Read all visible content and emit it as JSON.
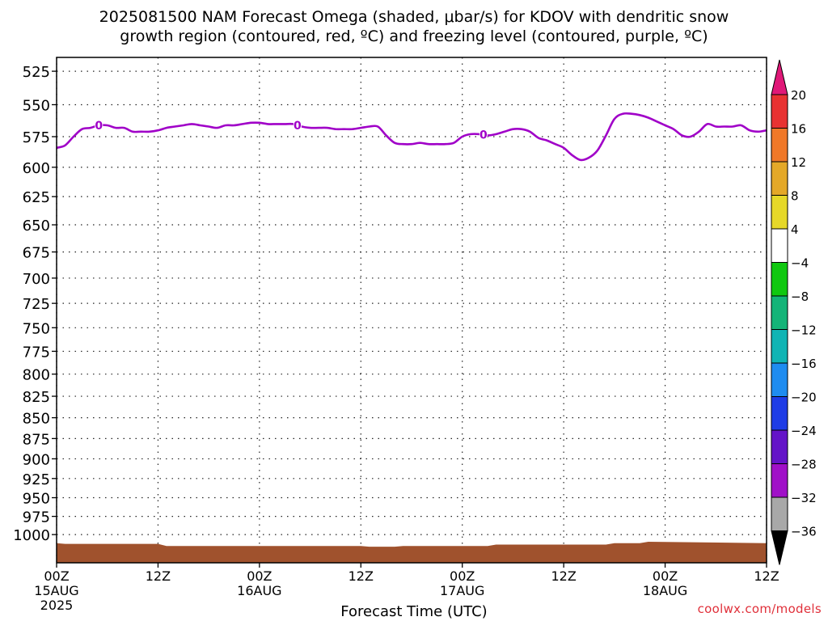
{
  "title_line1": "2025081500 NAM Forecast Omega (shaded, μbar/s) for KDOV with dendritic snow",
  "title_line2": "growth region (contoured, red, ºC) and freezing level (contoured, purple, ºC)",
  "xlabel": "Forecast Time (UTC)",
  "watermark": "coolwx.com/models",
  "chart_data": {
    "type": "line",
    "title": "2025081500 NAM Forecast Omega (shaded, μbar/s) for KDOV with dendritic snow growth region (contoured, red, ºC) and freezing level (contoured, purple, ºC)",
    "xlabel": "Forecast Time (UTC)",
    "ylabel": "",
    "y_scale": "log-pressure",
    "y_direction": "inverted",
    "ylim": [
      1040,
      515
    ],
    "xlim_hours": [
      0,
      84
    ],
    "grid": true,
    "y_ticks": [
      525,
      550,
      575,
      600,
      625,
      650,
      675,
      700,
      725,
      750,
      775,
      800,
      825,
      850,
      875,
      900,
      925,
      950,
      975,
      1000
    ],
    "x_ticks": [
      {
        "hour": 0,
        "label": "00Z",
        "date": "15AUG",
        "year": "2025"
      },
      {
        "hour": 12,
        "label": "12Z",
        "date": "",
        "year": ""
      },
      {
        "hour": 24,
        "label": "00Z",
        "date": "16AUG",
        "year": ""
      },
      {
        "hour": 36,
        "label": "12Z",
        "date": "",
        "year": ""
      },
      {
        "hour": 48,
        "label": "00Z",
        "date": "17AUG",
        "year": ""
      },
      {
        "hour": 60,
        "label": "12Z",
        "date": "",
        "year": ""
      },
      {
        "hour": 72,
        "label": "00Z",
        "date": "18AUG",
        "year": ""
      },
      {
        "hour": 84,
        "label": "12Z",
        "date": "",
        "year": ""
      }
    ],
    "series": [
      {
        "kind": "freezing-level-contour",
        "color": "#a000c8",
        "contour_label": "0",
        "contour_label_hours": [
          5,
          28.5,
          50.5
        ],
        "x": [
          0,
          1,
          2,
          3,
          4,
          5,
          6,
          7,
          8,
          9,
          10,
          11,
          12,
          13,
          14,
          15,
          16,
          17,
          18,
          19,
          20,
          21,
          22,
          23,
          24,
          25,
          26,
          27,
          28,
          29,
          30,
          31,
          32,
          33,
          34,
          35,
          36,
          37,
          38,
          39,
          40,
          41,
          42,
          43,
          44,
          45,
          46,
          47,
          48,
          49,
          50,
          51,
          52,
          53,
          54,
          55,
          56,
          57,
          58,
          59,
          60,
          61,
          62,
          63,
          64,
          65,
          66,
          67,
          68,
          69,
          70,
          71,
          72,
          73,
          74,
          75,
          76,
          77,
          78,
          79,
          80,
          81,
          82,
          83,
          84
        ],
        "y": [
          584,
          582,
          575,
          569,
          568,
          566,
          566,
          568,
          568,
          571,
          571,
          571,
          570,
          568,
          567,
          566,
          565,
          566,
          567,
          568,
          566,
          566,
          565,
          564,
          564,
          565,
          565,
          565,
          565,
          567,
          568,
          568,
          568,
          569,
          569,
          569,
          568,
          567,
          567,
          574,
          580,
          581,
          581,
          580,
          581,
          581,
          581,
          580,
          575,
          573,
          573,
          574,
          573,
          571,
          569,
          569,
          571,
          576,
          578,
          581,
          584,
          590,
          594,
          592,
          586,
          574,
          561,
          557,
          557,
          558,
          560,
          563,
          566,
          569,
          574,
          575,
          571,
          565,
          567,
          567,
          567,
          566,
          570,
          571,
          570
        ]
      },
      {
        "kind": "terrain-surface-pressure",
        "color": "#a0522d",
        "x": [
          0,
          1,
          12,
          13,
          24,
          36,
          37,
          40,
          41,
          51,
          52,
          65,
          66,
          69,
          70,
          84
        ],
        "y": [
          1012,
          1013,
          1013,
          1016,
          1016,
          1016,
          1017,
          1017,
          1016,
          1016,
          1014,
          1014,
          1012,
          1012,
          1010,
          1012
        ]
      }
    ]
  },
  "colorbar": {
    "top_color": "#e01878",
    "bottom_color": "#000000",
    "bands": [
      {
        "color": "#e83232"
      },
      {
        "color": "#f07828"
      },
      {
        "color": "#e4a828"
      },
      {
        "color": "#e6d828"
      },
      {
        "color": "#ffffff"
      },
      {
        "color": "#10c810"
      },
      {
        "color": "#14b478"
      },
      {
        "color": "#10b4b4"
      },
      {
        "color": "#1e8cf0"
      },
      {
        "color": "#1e3ce6"
      },
      {
        "color": "#6414c8"
      },
      {
        "color": "#a010c8"
      },
      {
        "color": "#a8a8a8"
      }
    ],
    "labels": [
      "20",
      "16",
      "12",
      "8",
      "4",
      "−4",
      "−8",
      "−12",
      "−16",
      "−20",
      "−24",
      "−28",
      "−32",
      "−36"
    ]
  }
}
